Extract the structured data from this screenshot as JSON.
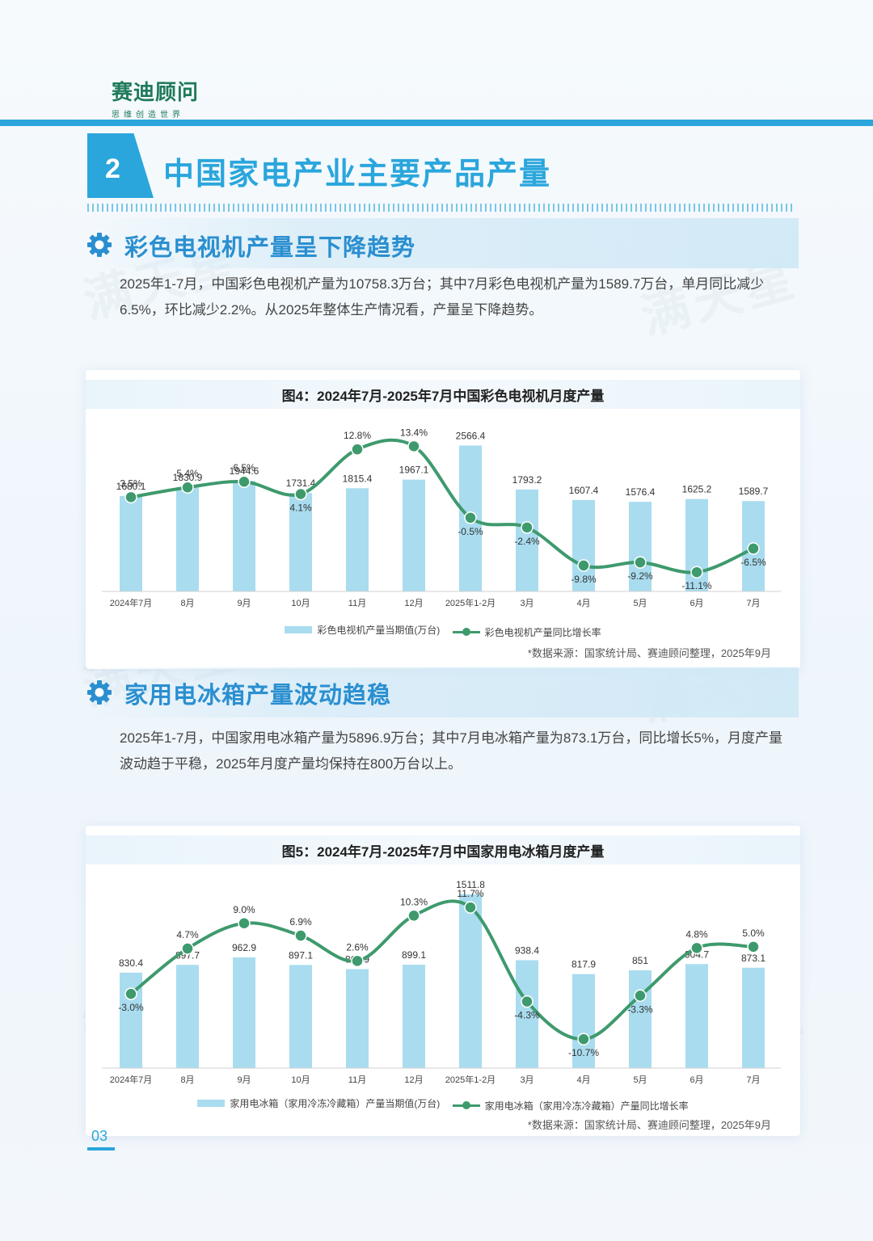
{
  "header": {
    "logo_name": "赛迪顾问",
    "logo_tagline": "思维创造世界"
  },
  "section": {
    "number": "2",
    "title": "中国家电产业主要产品产量"
  },
  "tv": {
    "subtitle": "彩色电视机产量呈下降趋势",
    "paragraph": "2025年1-7月，中国彩色电视机产量为10758.3万台；其中7月彩色电视机产量为1589.7万台，单月同比减少6.5%，环比减少2.2%。从2025年整体生产情况看，产量呈下降趋势。",
    "chart_title": "图4：2024年7月-2025年7月中国彩色电视机月度产量",
    "legend_bar": "彩色电视机产量当期值(万台)",
    "legend_line": "彩色电视机产量同比增长率",
    "source": "*数据来源：国家统计局、赛迪顾问整理，2025年9月"
  },
  "fridge": {
    "subtitle": "家用电冰箱产量波动趋稳",
    "paragraph": "2025年1-7月，中国家用电冰箱产量为5896.9万台；其中7月电冰箱产量为873.1万台，同比增长5%，月度产量波动趋于平稳，2025年月度产量均保持在800万台以上。",
    "chart_title": "图5：2024年7月-2025年7月中国家用电冰箱月度产量",
    "legend_bar": "家用电冰箱（家用冷冻冷藏箱）产量当期值(万台)",
    "legend_line": "家用电冰箱（家用冷冻冷藏箱）产量同比增长率",
    "source": "*数据来源：国家统计局、赛迪顾问整理，2025年9月"
  },
  "watermark": "满天星",
  "page_number": "03",
  "colors": {
    "accent": "#2aa6dc",
    "bar": "#a9dcef",
    "line": "#3e9a6d",
    "logo": "#1f7a5a"
  },
  "chart_data": [
    {
      "type": "bar",
      "title": "图4：2024年7月-2025年7月中国彩色电视机月度产量",
      "categories": [
        "2024年7月",
        "8月",
        "9月",
        "10月",
        "11月",
        "12月",
        "2025年1-2月",
        "3月",
        "4月",
        "5月",
        "6月",
        "7月"
      ],
      "series": [
        {
          "name": "彩色电视机产量当期值(万台)",
          "type": "bar",
          "values": [
            1680.1,
            1830.9,
            1944.6,
            1731.4,
            1815.4,
            1967.1,
            2566.4,
            1793.2,
            1607.4,
            1576.4,
            1625.2,
            1589.7
          ],
          "labels": [
            "1680.1",
            "1830.9",
            "1944.6",
            "1731.4",
            "1815.4",
            "1967.1",
            "2566.4",
            "1793.2",
            "1607.4",
            "1576.4",
            "1625.2",
            "1589.7"
          ]
        },
        {
          "name": "彩色电视机产量同比增长率",
          "type": "line",
          "values": [
            3.5,
            5.4,
            6.5,
            4.1,
            12.8,
            13.4,
            -0.5,
            -2.4,
            -9.8,
            -9.2,
            -11.1,
            -6.5
          ],
          "labels": [
            "3.5%",
            "5.4%",
            "6.5%",
            "4.1%",
            "12.8%",
            "13.4%",
            "-0.5%",
            "-2.4%",
            "-9.8%",
            "-9.2%",
            "-11.1%",
            "-6.5%"
          ]
        }
      ],
      "legend": "bottom"
    },
    {
      "type": "bar",
      "title": "图5：2024年7月-2025年7月中国家用电冰箱月度产量",
      "categories": [
        "2024年7月",
        "8月",
        "9月",
        "10月",
        "11月",
        "12月",
        "2025年1-2月",
        "3月",
        "4月",
        "5月",
        "6月",
        "7月"
      ],
      "series": [
        {
          "name": "家用电冰箱（家用冷冻冷藏箱）产量当期值(万台)",
          "type": "bar",
          "values": [
            830.4,
            897.7,
            962.9,
            897.1,
            860.9,
            899.1,
            1511.8,
            938.4,
            817.9,
            851,
            904.7,
            873.1
          ],
          "labels": [
            "830.4",
            "897.7",
            "962.9",
            "897.1",
            "860.9",
            "899.1",
            "1511.8",
            "938.4",
            "817.9",
            "851",
            "904.7",
            "873.1"
          ]
        },
        {
          "name": "家用电冰箱（家用冷冻冷藏箱）产量同比增长率",
          "type": "line",
          "values": [
            -3.0,
            4.7,
            9.0,
            6.9,
            2.6,
            10.3,
            11.7,
            -4.3,
            -10.7,
            -3.3,
            4.8,
            5.0
          ],
          "labels": [
            "-3.0%",
            "4.7%",
            "9.0%",
            "6.9%",
            "2.6%",
            "10.3%",
            "11.7%",
            "-4.3%",
            "-10.7%",
            "-3.3%",
            "4.8%",
            "5.0%"
          ]
        }
      ],
      "legend": "bottom"
    }
  ]
}
